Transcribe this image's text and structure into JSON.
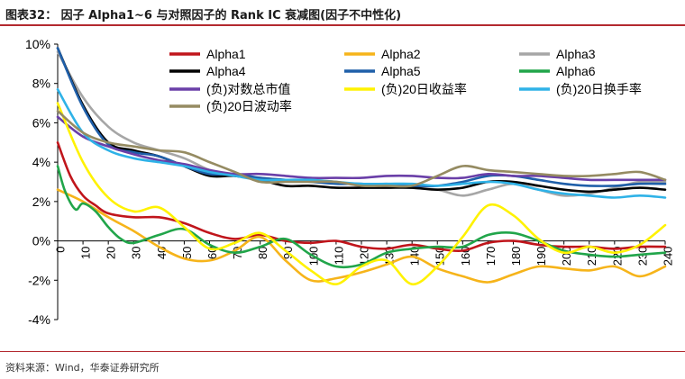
{
  "header": {
    "title": "图表32：  因子 Alpha1~6 与对照因子的 Rank IC 衰减图(因子不中性化)",
    "source": "资料来源：Wind，华泰证券研究所"
  },
  "chart_data": {
    "type": "line",
    "title": "图表32：  因子 Alpha1~6 与对照因子的 Rank IC 衰减图(因子不中性化)",
    "xlabel": "",
    "ylabel": "",
    "xlim": [
      0,
      240
    ],
    "ylim": [
      -4,
      10
    ],
    "x_ticks": [
      0,
      10,
      20,
      30,
      40,
      50,
      60,
      70,
      80,
      90,
      100,
      110,
      120,
      130,
      140,
      150,
      160,
      170,
      180,
      190,
      200,
      210,
      220,
      230,
      240
    ],
    "y_ticks": [
      -4,
      -2,
      0,
      2,
      4,
      6,
      8,
      10
    ],
    "y_tick_labels": [
      "-4%",
      "-2%",
      "0%",
      "2%",
      "4%",
      "6%",
      "8%",
      "10%"
    ],
    "grid": false,
    "legend_position": "top",
    "series": [
      {
        "name": "Alpha1",
        "color": "#c0151b",
        "points": [
          [
            0,
            5.0
          ],
          [
            5,
            3.3
          ],
          [
            10,
            2.3
          ],
          [
            15,
            1.8
          ],
          [
            20,
            1.4
          ],
          [
            30,
            1.2
          ],
          [
            40,
            1.2
          ],
          [
            50,
            0.9
          ],
          [
            60,
            0.4
          ],
          [
            70,
            0.1
          ],
          [
            80,
            0.3
          ],
          [
            90,
            0.0
          ],
          [
            100,
            -0.1
          ],
          [
            110,
            0.0
          ],
          [
            120,
            -0.3
          ],
          [
            130,
            -0.4
          ],
          [
            140,
            -0.2
          ],
          [
            150,
            -0.4
          ],
          [
            160,
            -0.5
          ],
          [
            170,
            -0.1
          ],
          [
            180,
            0.0
          ],
          [
            190,
            -0.2
          ],
          [
            200,
            -0.3
          ],
          [
            210,
            -0.3
          ],
          [
            220,
            -0.4
          ],
          [
            230,
            -0.3
          ],
          [
            240,
            -0.3
          ]
        ]
      },
      {
        "name": "Alpha2",
        "color": "#f6b41a",
        "points": [
          [
            0,
            2.6
          ],
          [
            10,
            2.0
          ],
          [
            20,
            1.2
          ],
          [
            30,
            0.5
          ],
          [
            40,
            -0.3
          ],
          [
            50,
            -0.9
          ],
          [
            60,
            -1.0
          ],
          [
            70,
            -0.5
          ],
          [
            80,
            0.2
          ],
          [
            90,
            -1.0
          ],
          [
            100,
            -2.0
          ],
          [
            110,
            -1.9
          ],
          [
            120,
            -1.6
          ],
          [
            130,
            -1.2
          ],
          [
            140,
            -0.8
          ],
          [
            150,
            -1.4
          ],
          [
            160,
            -1.8
          ],
          [
            170,
            -2.1
          ],
          [
            180,
            -1.7
          ],
          [
            190,
            -1.3
          ],
          [
            200,
            -1.4
          ],
          [
            210,
            -1.5
          ],
          [
            220,
            -1.3
          ],
          [
            230,
            -1.8
          ],
          [
            240,
            -1.3
          ]
        ]
      },
      {
        "name": "Alpha3",
        "color": "#a6a6a6",
        "points": [
          [
            0,
            9.6
          ],
          [
            10,
            7.3
          ],
          [
            20,
            5.8
          ],
          [
            30,
            5.0
          ],
          [
            40,
            4.6
          ],
          [
            50,
            4.2
          ],
          [
            60,
            3.6
          ],
          [
            70,
            3.3
          ],
          [
            80,
            3.2
          ],
          [
            90,
            3.1
          ],
          [
            100,
            3.1
          ],
          [
            110,
            3.0
          ],
          [
            120,
            2.8
          ],
          [
            130,
            2.9
          ],
          [
            140,
            2.7
          ],
          [
            150,
            2.6
          ],
          [
            160,
            2.3
          ],
          [
            170,
            2.6
          ],
          [
            180,
            2.9
          ],
          [
            190,
            2.6
          ],
          [
            200,
            2.3
          ],
          [
            210,
            2.4
          ],
          [
            220,
            2.7
          ],
          [
            230,
            3.0
          ],
          [
            240,
            3.0
          ]
        ]
      },
      {
        "name": "Alpha4",
        "color": "#000000",
        "points": [
          [
            0,
            9.8
          ],
          [
            10,
            6.9
          ],
          [
            20,
            5.0
          ],
          [
            30,
            4.6
          ],
          [
            40,
            4.3
          ],
          [
            50,
            3.8
          ],
          [
            60,
            3.3
          ],
          [
            70,
            3.3
          ],
          [
            80,
            3.1
          ],
          [
            90,
            2.8
          ],
          [
            100,
            2.8
          ],
          [
            110,
            2.7
          ],
          [
            120,
            2.7
          ],
          [
            130,
            2.7
          ],
          [
            140,
            2.7
          ],
          [
            150,
            2.6
          ],
          [
            160,
            2.7
          ],
          [
            170,
            3.0
          ],
          [
            180,
            3.0
          ],
          [
            190,
            2.8
          ],
          [
            200,
            2.6
          ],
          [
            210,
            2.5
          ],
          [
            220,
            2.6
          ],
          [
            230,
            2.7
          ],
          [
            240,
            2.6
          ]
        ]
      },
      {
        "name": "Alpha5",
        "color": "#1f5fa9",
        "points": [
          [
            0,
            9.8
          ],
          [
            10,
            6.8
          ],
          [
            20,
            4.9
          ],
          [
            30,
            4.5
          ],
          [
            40,
            4.3
          ],
          [
            50,
            3.8
          ],
          [
            60,
            3.4
          ],
          [
            70,
            3.4
          ],
          [
            80,
            3.2
          ],
          [
            90,
            3.1
          ],
          [
            100,
            3.0
          ],
          [
            110,
            2.9
          ],
          [
            120,
            2.9
          ],
          [
            130,
            2.8
          ],
          [
            140,
            2.8
          ],
          [
            150,
            2.8
          ],
          [
            160,
            3.0
          ],
          [
            170,
            3.3
          ],
          [
            180,
            3.3
          ],
          [
            190,
            3.1
          ],
          [
            200,
            2.9
          ],
          [
            210,
            2.8
          ],
          [
            220,
            2.8
          ],
          [
            230,
            2.9
          ],
          [
            240,
            2.9
          ]
        ]
      },
      {
        "name": "Alpha6",
        "color": "#21a54a",
        "points": [
          [
            0,
            3.8
          ],
          [
            3,
            2.5
          ],
          [
            7,
            1.6
          ],
          [
            10,
            1.9
          ],
          [
            15,
            1.5
          ],
          [
            20,
            0.7
          ],
          [
            25,
            0.1
          ],
          [
            30,
            -0.1
          ],
          [
            40,
            0.3
          ],
          [
            50,
            0.6
          ],
          [
            60,
            -0.2
          ],
          [
            70,
            -0.6
          ],
          [
            80,
            -0.3
          ],
          [
            90,
            0.1
          ],
          [
            100,
            -0.7
          ],
          [
            110,
            -1.3
          ],
          [
            120,
            -1.2
          ],
          [
            130,
            -0.6
          ],
          [
            140,
            -0.4
          ],
          [
            150,
            -0.3
          ],
          [
            160,
            -0.3
          ],
          [
            170,
            0.3
          ],
          [
            180,
            0.4
          ],
          [
            190,
            0.0
          ],
          [
            200,
            -0.5
          ],
          [
            210,
            -0.7
          ],
          [
            220,
            -0.8
          ],
          [
            230,
            -0.7
          ],
          [
            240,
            -0.6
          ]
        ]
      },
      {
        "name": "(负)对数总市值",
        "color": "#6a3fa8",
        "points": [
          [
            0,
            6.3
          ],
          [
            10,
            5.3
          ],
          [
            20,
            4.8
          ],
          [
            30,
            4.4
          ],
          [
            40,
            4.1
          ],
          [
            50,
            3.9
          ],
          [
            60,
            3.6
          ],
          [
            70,
            3.4
          ],
          [
            80,
            3.4
          ],
          [
            90,
            3.3
          ],
          [
            100,
            3.2
          ],
          [
            110,
            3.2
          ],
          [
            120,
            3.2
          ],
          [
            130,
            3.3
          ],
          [
            140,
            3.3
          ],
          [
            150,
            3.2
          ],
          [
            160,
            3.2
          ],
          [
            170,
            3.4
          ],
          [
            180,
            3.3
          ],
          [
            190,
            3.3
          ],
          [
            200,
            3.2
          ],
          [
            210,
            3.1
          ],
          [
            220,
            3.1
          ],
          [
            230,
            3.1
          ],
          [
            240,
            3.1
          ]
        ]
      },
      {
        "name": "(负)20日收益率",
        "color": "#fff200",
        "points": [
          [
            0,
            7.0
          ],
          [
            10,
            4.0
          ],
          [
            20,
            2.2
          ],
          [
            30,
            1.5
          ],
          [
            40,
            1.7
          ],
          [
            50,
            0.7
          ],
          [
            60,
            -0.4
          ],
          [
            70,
            -0.1
          ],
          [
            80,
            0.4
          ],
          [
            90,
            -0.5
          ],
          [
            100,
            -1.5
          ],
          [
            110,
            -2.2
          ],
          [
            120,
            -1.3
          ],
          [
            130,
            -1.0
          ],
          [
            140,
            -2.2
          ],
          [
            150,
            -1.3
          ],
          [
            160,
            0.2
          ],
          [
            170,
            1.8
          ],
          [
            180,
            1.3
          ],
          [
            190,
            0.1
          ],
          [
            200,
            -0.6
          ],
          [
            210,
            -0.3
          ],
          [
            220,
            -0.6
          ],
          [
            230,
            -0.2
          ],
          [
            240,
            0.8
          ]
        ]
      },
      {
        "name": "(负)20日换手率",
        "color": "#2fb2e7",
        "points": [
          [
            0,
            7.7
          ],
          [
            10,
            5.5
          ],
          [
            20,
            4.6
          ],
          [
            30,
            4.2
          ],
          [
            40,
            4.0
          ],
          [
            50,
            3.8
          ],
          [
            60,
            3.5
          ],
          [
            70,
            3.3
          ],
          [
            80,
            3.1
          ],
          [
            90,
            3.1
          ],
          [
            100,
            3.1
          ],
          [
            110,
            3.0
          ],
          [
            120,
            2.9
          ],
          [
            130,
            2.9
          ],
          [
            140,
            2.9
          ],
          [
            150,
            2.8
          ],
          [
            160,
            2.9
          ],
          [
            170,
            3.0
          ],
          [
            180,
            2.9
          ],
          [
            190,
            2.6
          ],
          [
            200,
            2.4
          ],
          [
            210,
            2.3
          ],
          [
            220,
            2.2
          ],
          [
            230,
            2.3
          ],
          [
            240,
            2.2
          ]
        ]
      },
      {
        "name": "(负)20日波动率",
        "color": "#958b62",
        "points": [
          [
            0,
            6.6
          ],
          [
            10,
            5.5
          ],
          [
            20,
            5.0
          ],
          [
            30,
            4.8
          ],
          [
            40,
            4.6
          ],
          [
            50,
            4.5
          ],
          [
            60,
            4.0
          ],
          [
            70,
            3.5
          ],
          [
            80,
            3.0
          ],
          [
            90,
            3.0
          ],
          [
            100,
            3.0
          ],
          [
            110,
            3.0
          ],
          [
            120,
            2.8
          ],
          [
            130,
            2.8
          ],
          [
            140,
            2.8
          ],
          [
            150,
            3.3
          ],
          [
            160,
            3.8
          ],
          [
            170,
            3.6
          ],
          [
            180,
            3.5
          ],
          [
            190,
            3.4
          ],
          [
            200,
            3.3
          ],
          [
            210,
            3.3
          ],
          [
            220,
            3.4
          ],
          [
            230,
            3.5
          ],
          [
            240,
            3.1
          ]
        ]
      }
    ]
  }
}
